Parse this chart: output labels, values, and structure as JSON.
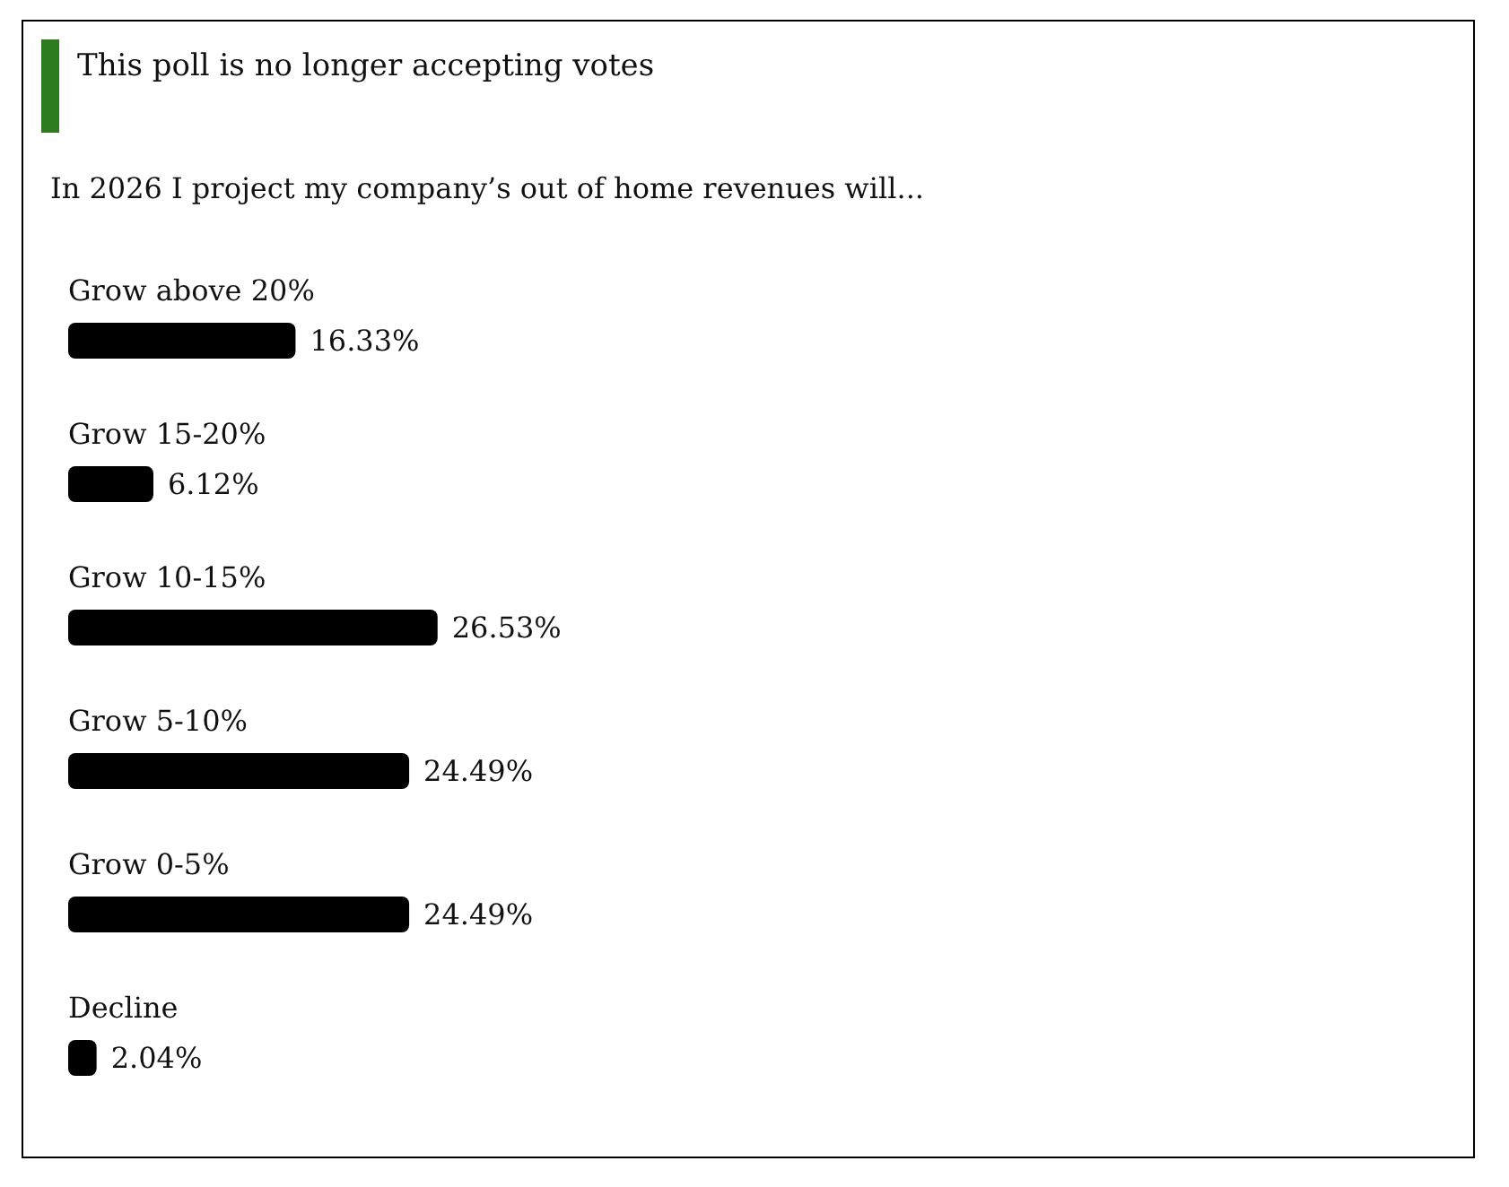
{
  "chart_data": {
    "type": "bar",
    "orientation": "horizontal",
    "title": "In 2026 I project my company’s out of home revenues will...",
    "annotations": [
      "This poll is no longer accepting votes"
    ],
    "categories": [
      "Grow above 20%",
      "Grow 15-20%",
      "Grow 10-15%",
      "Grow 5-10%",
      "Grow 0-5%",
      "Decline"
    ],
    "values": [
      16.33,
      6.12,
      26.53,
      24.49,
      24.49,
      2.04
    ],
    "value_labels": [
      "16.33%",
      "6.12%",
      "26.53%",
      "24.49%",
      "24.49%",
      "2.04%"
    ],
    "color": "#000000"
  }
}
